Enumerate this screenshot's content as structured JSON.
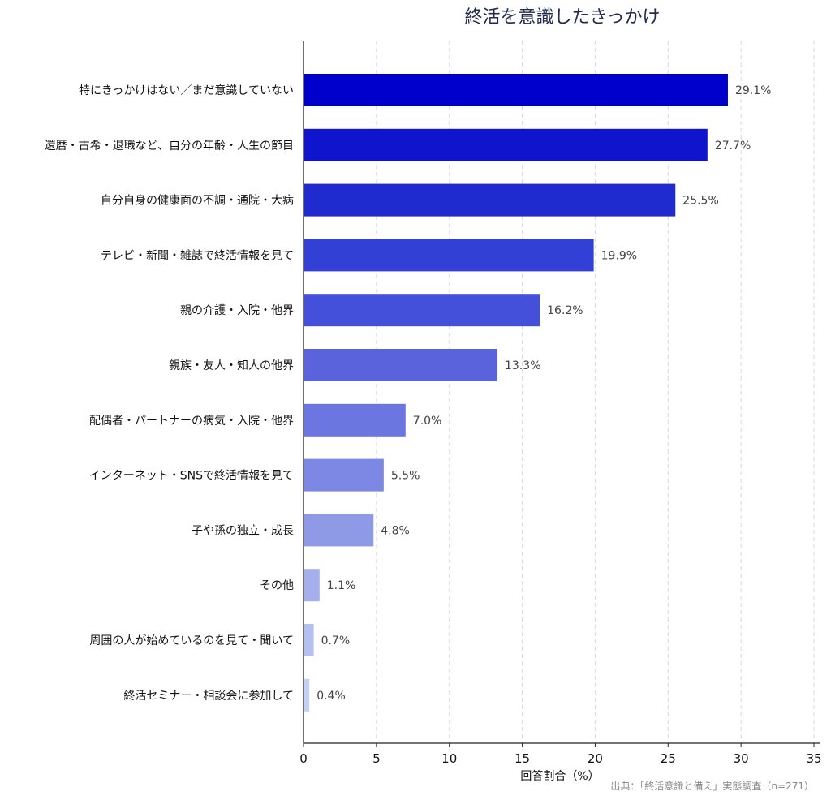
{
  "chart_data": {
    "type": "bar",
    "orientation": "horizontal",
    "title": "終活を意識したきっかけ",
    "xlabel": "回答割合（%）",
    "ylabel": "",
    "xlim": [
      0,
      35
    ],
    "xticks": [
      0,
      5,
      10,
      15,
      20,
      25,
      30,
      35
    ],
    "grid": "vertical dashed",
    "categories": [
      "特にきっかけはない／まだ意識していない",
      "還暦・古希・退職など、自分の年齢・人生の節目",
      "自分自身の健康面の不調・通院・大病",
      "テレビ・新聞・雑誌で終活情報を見て",
      "親の介護・入院・他界",
      "親族・友人・知人の他界",
      "配偶者・パートナーの病気・入院・他界",
      "インターネット・SNSで終活情報を見て",
      "子や孫の独立・成長",
      "その他",
      "周囲の人が始めているのを見て・聞いて",
      "終活セミナー・相談会に参加して"
    ],
    "values": [
      29.1,
      27.7,
      25.5,
      19.9,
      16.2,
      13.3,
      7.0,
      5.5,
      4.8,
      1.1,
      0.7,
      0.4
    ],
    "value_labels": [
      "29.1%",
      "27.7%",
      "25.5%",
      "19.9%",
      "16.2%",
      "13.3%",
      "7.0%",
      "5.5%",
      "4.8%",
      "1.1%",
      "0.7%",
      "0.4%"
    ],
    "bar_colors": [
      "#0000cc",
      "#0f15cc",
      "#1f2acf",
      "#3340d6",
      "#4450d9",
      "#5a63dc",
      "#6b76e0",
      "#7d88e5",
      "#8e9ae6",
      "#a3b0ec",
      "#b3c0f0",
      "#c3d0f5"
    ],
    "source": "出典：「終活意識と備え」実態調査（n=271）"
  }
}
